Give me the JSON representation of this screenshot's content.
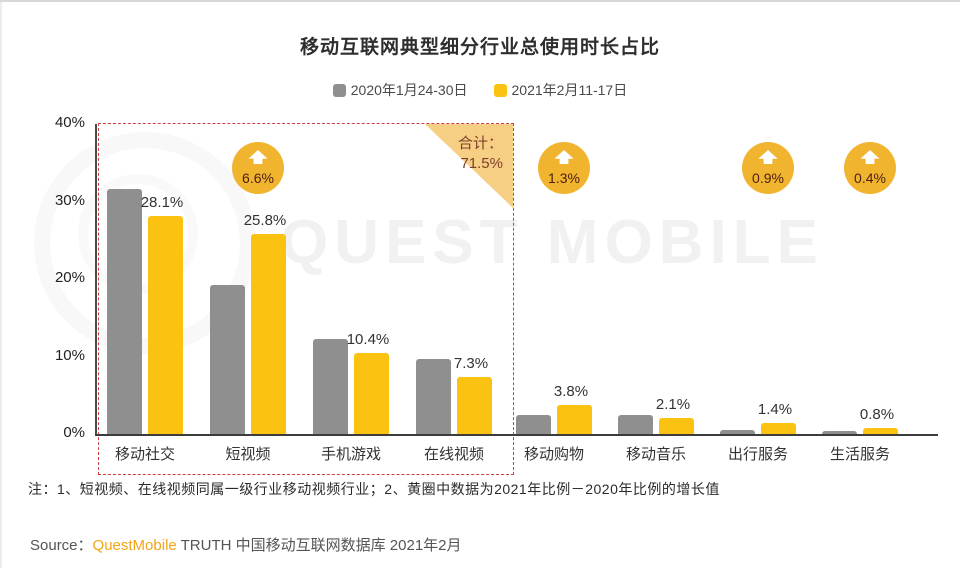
{
  "title": "移动互联网典型细分行业总使用时长占比",
  "legend": [
    {
      "label": "2020年1月24-30日",
      "color": "#8f8f8f"
    },
    {
      "label": "2021年2月11-17日",
      "color": "#fcc211"
    }
  ],
  "chart_data": {
    "type": "bar",
    "categories": [
      "移动社交",
      "短视频",
      "手机游戏",
      "在线视频",
      "移动购物",
      "移动音乐",
      "出行服务",
      "生活服务"
    ],
    "series": [
      {
        "name": "2020年1月24-30日",
        "color": "#8f8f8f",
        "values": [
          31.6,
          19.2,
          12.2,
          9.7,
          2.5,
          2.4,
          0.5,
          0.4
        ]
      },
      {
        "name": "2021年2月11-17日",
        "color": "#fcc211",
        "values": [
          28.1,
          25.8,
          10.4,
          7.3,
          3.8,
          2.1,
          1.4,
          0.8
        ]
      }
    ],
    "bar_labels": [
      "28.1%",
      "25.8%",
      "10.4%",
      "7.3%",
      "3.8%",
      "2.1%",
      "1.4%",
      "0.8%"
    ],
    "growth_badges": [
      null,
      "6.6%",
      null,
      null,
      "1.3%",
      null,
      "0.9%",
      "0.4%"
    ],
    "yticks": [
      {
        "value": 0,
        "label": "0%"
      },
      {
        "value": 10,
        "label": "10%"
      },
      {
        "value": 20,
        "label": "20%"
      },
      {
        "value": 30,
        "label": "30%"
      },
      {
        "value": 40,
        "label": "40%"
      }
    ],
    "ylim": [
      0,
      40
    ],
    "legend_position": "top",
    "grid": false,
    "highlight_box": {
      "covers_categories": [
        "移动社交",
        "短视频",
        "手机游戏",
        "在线视频"
      ],
      "total_label": "合计：",
      "total_value": "71.5%"
    }
  },
  "watermark": {
    "text": "QUEST MOBILE"
  },
  "note": "注：1、短视频、在线视频同属一级行业移动视频行业；2、黄圈中数据为2021年比例－2020年比例的增长值",
  "source": {
    "prefix": "Source：",
    "brand": "QuestMobile",
    "rest": " TRUTH 中国移动互联网数据库 2021年2月"
  },
  "colors": {
    "bar_2020": "#8f8f8f",
    "bar_2021": "#fcc211",
    "badge": "#f1b42f",
    "triangle": "#f7cf84",
    "dashed_box": "#c9413f",
    "brand_text": "#f2a516"
  }
}
